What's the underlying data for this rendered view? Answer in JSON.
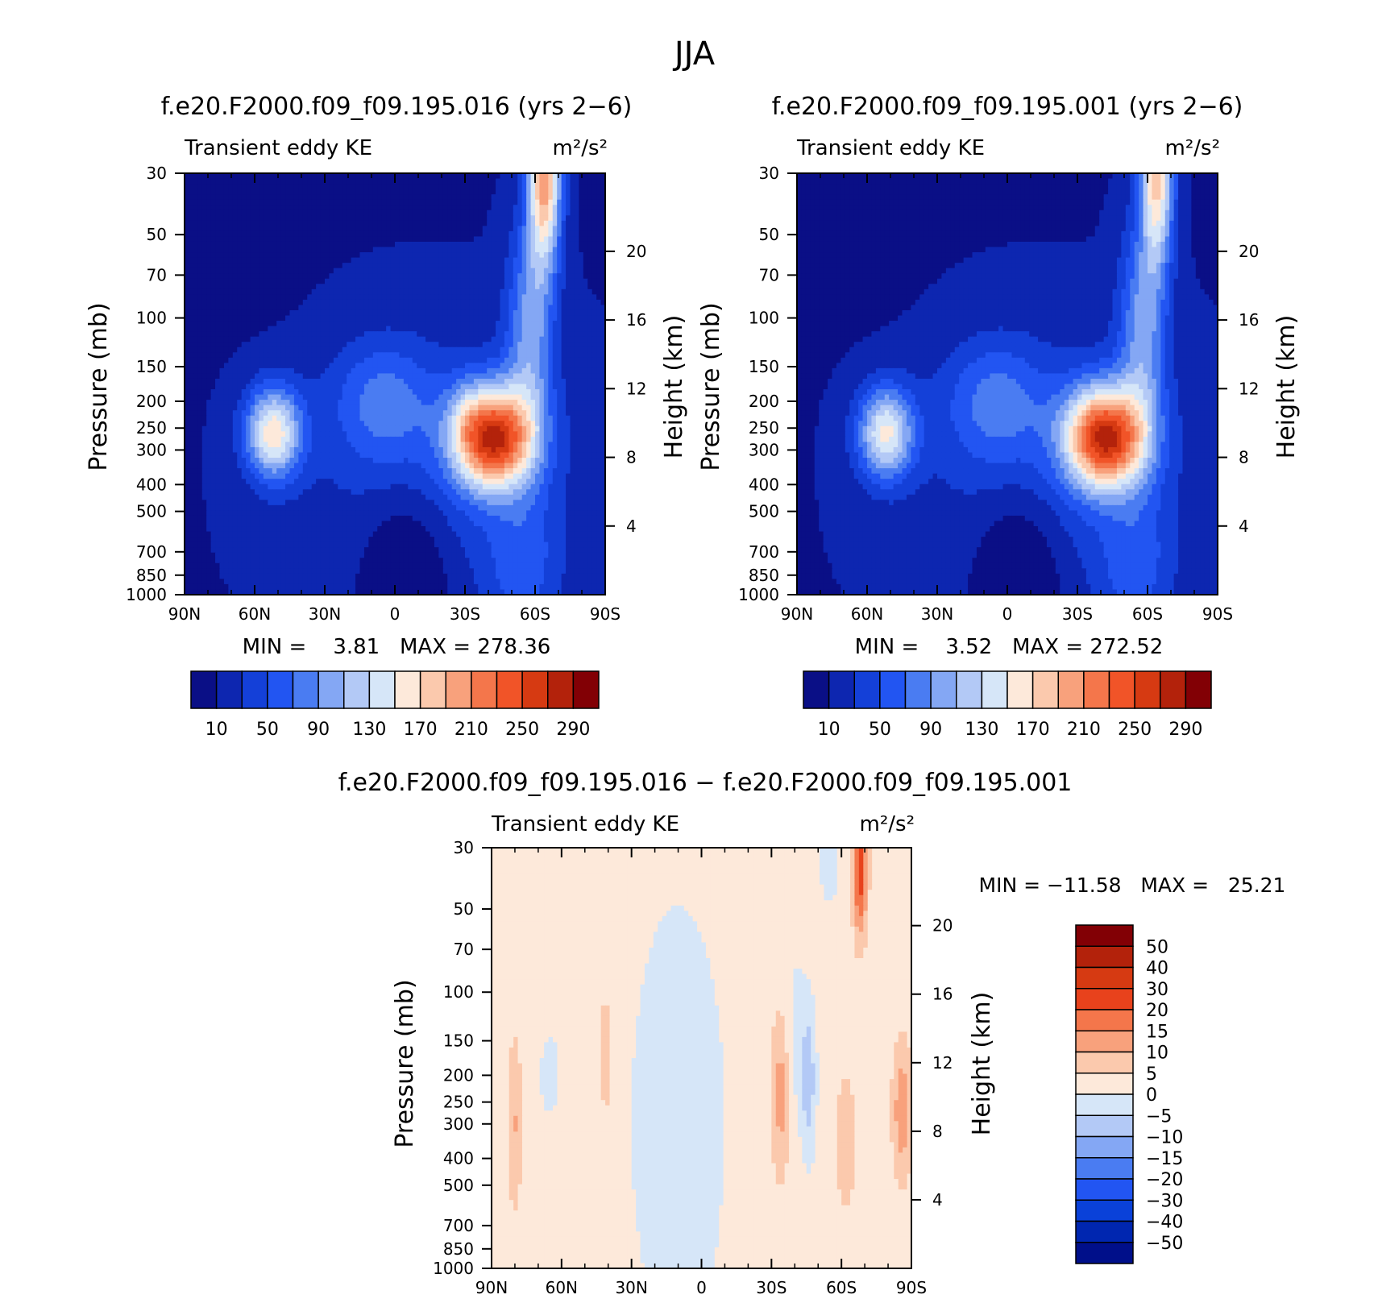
{
  "figure": {
    "title": "JJA"
  },
  "colors": {
    "abs": [
      "#0a0f86",
      "#0d26b0",
      "#1440d8",
      "#2255f2",
      "#4a7cf2",
      "#84a7f4",
      "#b3c9f6",
      "#d6e6f8",
      "#fde9da",
      "#fbc9ad",
      "#f8a17c",
      "#f4764b",
      "#f15428",
      "#d63a12",
      "#b3220b",
      "#820005"
    ],
    "diff": [
      "#000f8a",
      "#0026b0",
      "#0a41d9",
      "#2255f2",
      "#4a7cf2",
      "#84a7f4",
      "#b3c9f6",
      "#d6e6f8",
      "#fde9da",
      "#fbc9ad",
      "#f8a17c",
      "#f4764b",
      "#e8421c",
      "#d63a12",
      "#b3220b",
      "#820005"
    ]
  },
  "chart_data": [
    {
      "type": "heatmap",
      "title": "f.e20.F2000.f09_f09.195.016 (yrs 2−6)",
      "left_label": "Transient eddy KE",
      "units": "m²/s²",
      "ylabel": "Pressure (mb)",
      "ylabel_right": "Height (km)",
      "xticks": [
        "90N",
        "60N",
        "30N",
        "0",
        "30S",
        "60S",
        "90S"
      ],
      "yticks": [
        "30",
        "50",
        "70",
        "100",
        "150",
        "200",
        "250",
        "300",
        "400",
        "500",
        "700",
        "850",
        "1000"
      ],
      "yticks_right": [
        "20",
        "16",
        "12",
        "8",
        "4"
      ],
      "min_label": "MIN =    3.81   MAX = 278.36",
      "min": 3.81,
      "max": 278.36,
      "colorbar_labels": [
        "10",
        "50",
        "90",
        "130",
        "170",
        "210",
        "250",
        "290"
      ],
      "levels": [
        10,
        30,
        50,
        70,
        90,
        110,
        130,
        150,
        170,
        190,
        210,
        230,
        250,
        270,
        290
      ]
    },
    {
      "type": "heatmap",
      "title": "f.e20.F2000.f09_f09.195.001 (yrs 2−6)",
      "left_label": "Transient eddy KE",
      "units": "m²/s²",
      "ylabel": "Pressure (mb)",
      "ylabel_right": "Height (km)",
      "xticks": [
        "90N",
        "60N",
        "30N",
        "0",
        "30S",
        "60S",
        "90S"
      ],
      "yticks": [
        "30",
        "50",
        "70",
        "100",
        "150",
        "200",
        "250",
        "300",
        "400",
        "500",
        "700",
        "850",
        "1000"
      ],
      "yticks_right": [
        "20",
        "16",
        "12",
        "8",
        "4"
      ],
      "min_label": "MIN =    3.52   MAX = 272.52",
      "min": 3.52,
      "max": 272.52,
      "colorbar_labels": [
        "10",
        "50",
        "90",
        "130",
        "170",
        "210",
        "250",
        "290"
      ],
      "levels": [
        10,
        30,
        50,
        70,
        90,
        110,
        130,
        150,
        170,
        190,
        210,
        230,
        250,
        270,
        290
      ]
    },
    {
      "type": "heatmap",
      "title": "f.e20.F2000.f09_f09.195.016 − f.e20.F2000.f09_f09.195.001",
      "left_label": "Transient eddy KE",
      "units": "m²/s²",
      "ylabel": "Pressure (mb)",
      "ylabel_right": "Height (km)",
      "xticks": [
        "90N",
        "60N",
        "30N",
        "0",
        "30S",
        "60S",
        "90S"
      ],
      "yticks": [
        "30",
        "50",
        "70",
        "100",
        "150",
        "200",
        "250",
        "300",
        "400",
        "500",
        "700",
        "850",
        "1000"
      ],
      "yticks_right": [
        "20",
        "16",
        "12",
        "8",
        "4"
      ],
      "min_label": "MIN = −11.58   MAX =   25.21",
      "min": -11.58,
      "max": 25.21,
      "colorbar_labels": [
        "50",
        "40",
        "30",
        "20",
        "15",
        "10",
        "5",
        "0",
        "−5",
        "−10",
        "−15",
        "−20",
        "−30",
        "−40",
        "−50"
      ],
      "levels": [
        -50,
        -40,
        -30,
        -20,
        -15,
        -10,
        -5,
        0,
        5,
        10,
        15,
        20,
        30,
        40,
        50
      ]
    }
  ]
}
